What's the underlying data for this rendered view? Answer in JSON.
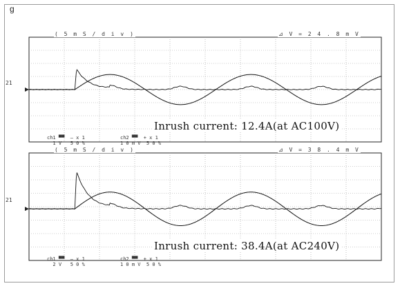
{
  "figure_label": "g",
  "chart_data": [
    {
      "type": "line",
      "timebase_label": "( 5 m S / d i v )",
      "delta_label": "⊿ V = 2 4 . 8 m V",
      "annotation": "Inrush current: 12.4A(at AC100V)",
      "channel_marker": "21",
      "footer_ch1": "ch1 ▀▀  — x 1\n  1 V   5 0 %",
      "footer_ch2": "ch2 ▀▀  + x 1\n1 0 m V  5 0 %",
      "grid": true,
      "x_divisions": 10,
      "y_divisions": 8,
      "inrush_time_div": 1.3,
      "inrush_peak_div": 1.8,
      "series": [
        {
          "role": "voltage",
          "amplitude_div": 1.15,
          "period_div": 4.0,
          "phase_start_div": 1.3
        },
        {
          "role": "current",
          "peak_div": 1.8,
          "baseline_div": 0
        }
      ]
    },
    {
      "type": "line",
      "timebase_label": "( 5 m S / d i v )",
      "delta_label": "⊿ V = 3 8 . 4 m V",
      "annotation": "Inrush current: 38.4A(at AC240V)",
      "channel_marker": "21",
      "footer_ch1": "ch1 ▀▀  — x 1\n  2 V   5 0 %",
      "footer_ch2": "ch2 ▀▀  + x 1\n1 0 m V  5 0 %",
      "grid": true,
      "x_divisions": 10,
      "y_divisions": 8,
      "inrush_time_div": 1.3,
      "inrush_peak_div": 3.2,
      "series": [
        {
          "role": "voltage",
          "amplitude_div": 1.25,
          "period_div": 4.0,
          "phase_start_div": 1.3
        },
        {
          "role": "current",
          "peak_div": 3.2,
          "baseline_div": 0
        }
      ]
    }
  ]
}
